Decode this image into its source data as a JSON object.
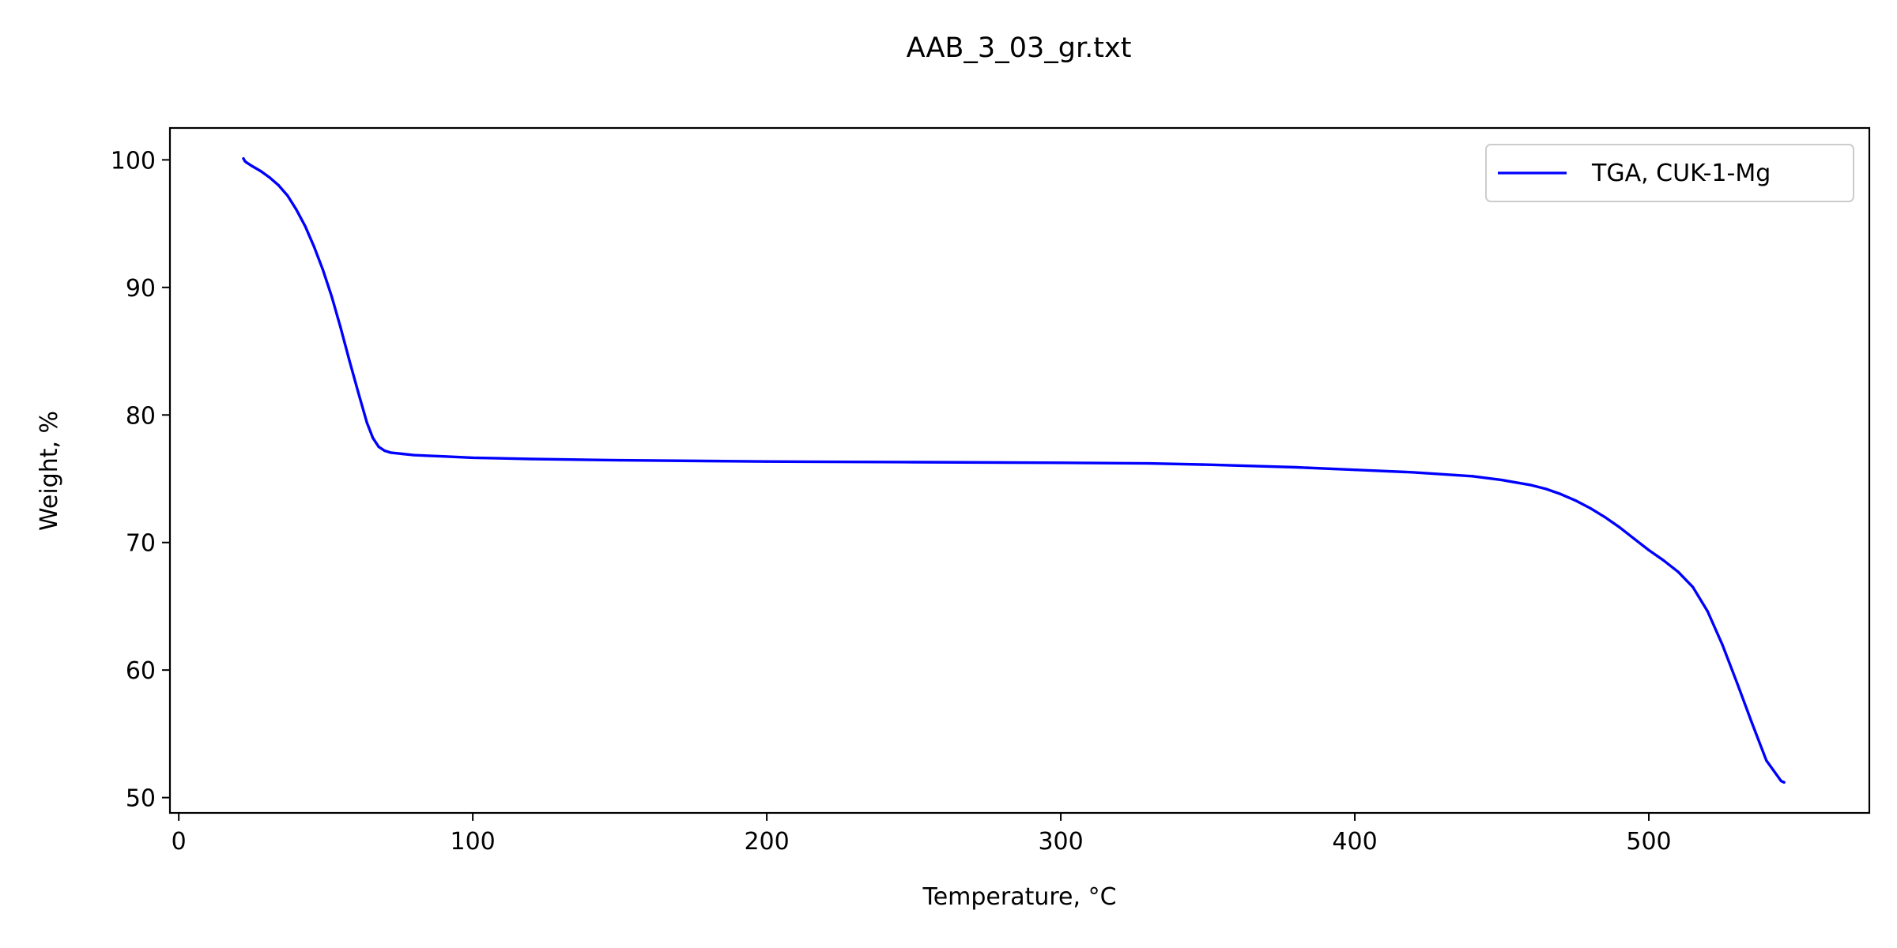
{
  "chart_data": {
    "type": "line",
    "title": "AAB_3_03_gr.txt",
    "xlabel": "Temperature, °C",
    "ylabel": "Weight, %",
    "xlim": [
      -3,
      575
    ],
    "ylim": [
      48.8,
      102.5
    ],
    "xticks": [
      0,
      100,
      200,
      300,
      400,
      500
    ],
    "yticks": [
      50,
      60,
      70,
      80,
      90,
      100
    ],
    "grid": false,
    "legend_position": "top-right",
    "series": [
      {
        "name": "TGA, CUK-1-Mg",
        "color": "#0000ff",
        "x": [
          22,
          22.5,
          23,
          25,
          28,
          31,
          34,
          37,
          40,
          43,
          46,
          49,
          52,
          55,
          58,
          61,
          64,
          66,
          68,
          70,
          72,
          74,
          76,
          78,
          80,
          85,
          90,
          100,
          120,
          150,
          200,
          250,
          300,
          330,
          350,
          380,
          400,
          420,
          440,
          450,
          460,
          465,
          470,
          475,
          480,
          485,
          490,
          495,
          500,
          505,
          510,
          515,
          520,
          525,
          530,
          535,
          540,
          545,
          546
        ],
        "y": [
          100.1,
          99.9,
          99.8,
          99.5,
          99.1,
          98.6,
          98.0,
          97.2,
          96.1,
          94.8,
          93.2,
          91.4,
          89.3,
          86.9,
          84.3,
          81.8,
          79.4,
          78.2,
          77.5,
          77.2,
          77.05,
          77.0,
          76.95,
          76.9,
          76.85,
          76.8,
          76.75,
          76.65,
          76.55,
          76.45,
          76.35,
          76.3,
          76.25,
          76.2,
          76.1,
          75.9,
          75.7,
          75.5,
          75.2,
          74.9,
          74.5,
          74.2,
          73.8,
          73.3,
          72.7,
          72.0,
          71.2,
          70.3,
          69.4,
          68.6,
          67.7,
          66.5,
          64.6,
          62.0,
          59.0,
          55.9,
          52.9,
          51.3,
          51.2
        ]
      }
    ]
  }
}
